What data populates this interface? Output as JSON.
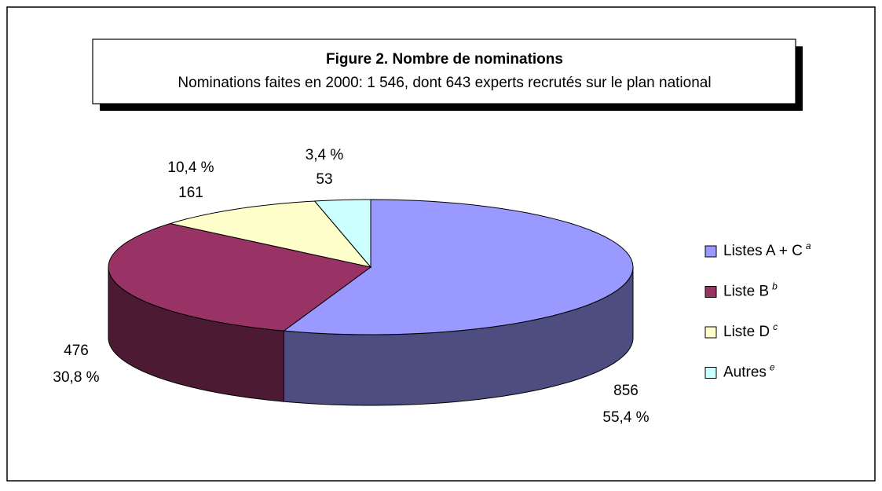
{
  "chart_data": {
    "type": "pie3d",
    "title": "Figure 2. Nombre de nominations",
    "subtitle": "Nominations faites en 2000: 1 546, dont 643 experts recrutés sur le plan national",
    "categories": [
      "Listes A + C",
      "Liste B",
      "Liste D",
      "Autres"
    ],
    "footnotes": [
      "a",
      "b",
      "c",
      "e"
    ],
    "values": [
      856,
      476,
      161,
      53
    ],
    "percentages": [
      55.4,
      30.8,
      10.4,
      3.4
    ],
    "percentage_labels": [
      "55,4 %",
      "30,8 %",
      "10,4 %",
      "3,4 %"
    ],
    "colors": [
      "#9999ff",
      "#993366",
      "#ffffcc",
      "#ccffff"
    ],
    "legend": "right"
  }
}
